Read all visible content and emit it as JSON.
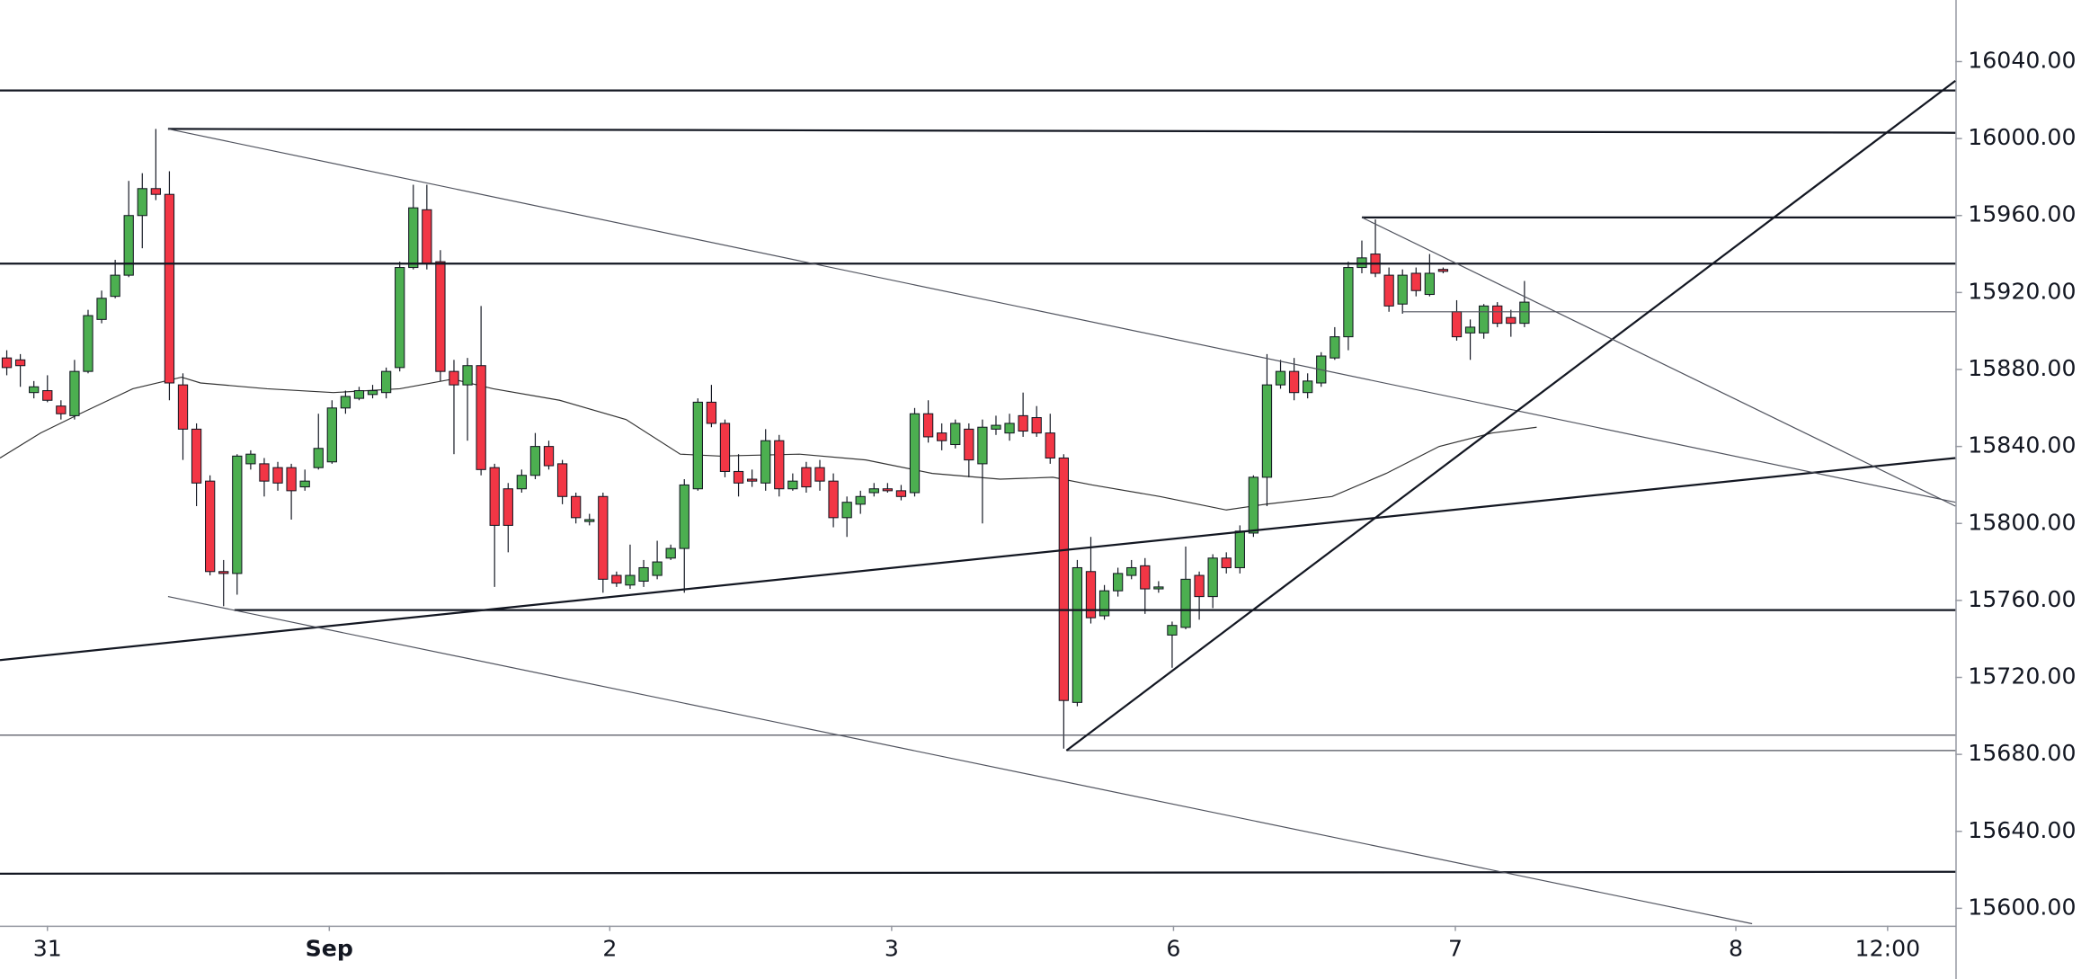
{
  "chart_data": {
    "type": "candlestick",
    "xlim": [
      -0.5,
      143.8
    ],
    "ylim": [
      15591,
      16072
    ],
    "xticks": [
      {
        "value": 3,
        "label": "31"
      },
      {
        "value": 23.8,
        "label": "Sep"
      },
      {
        "value": 44.5,
        "label": "2"
      },
      {
        "value": 65.3,
        "label": "3"
      },
      {
        "value": 86.1,
        "label": "6"
      },
      {
        "value": 106.9,
        "label": "7"
      },
      {
        "value": 127.6,
        "label": "8"
      },
      {
        "value": 138.8,
        "label": "12:00"
      }
    ],
    "yticks": [
      {
        "value": 15600,
        "label": "15600.00"
      },
      {
        "value": 15640,
        "label": "15640.00"
      },
      {
        "value": 15680,
        "label": "15680.00"
      },
      {
        "value": 15720,
        "label": "15720.00"
      },
      {
        "value": 15760,
        "label": "15760.00"
      },
      {
        "value": 15800,
        "label": "15800.00"
      },
      {
        "value": 15840,
        "label": "15840.00"
      },
      {
        "value": 15880,
        "label": "15880.00"
      },
      {
        "value": 15920,
        "label": "15920.00"
      },
      {
        "value": 15960,
        "label": "15960.00"
      },
      {
        "value": 16000,
        "label": "16000.00"
      },
      {
        "value": 16040,
        "label": "16040.00"
      }
    ],
    "up_color": "#4caf50",
    "down_color": "#f23645",
    "open": [
      15886,
      15885,
      15868,
      15869,
      15861,
      15856,
      15879,
      15906,
      15918,
      15929,
      15960,
      15974,
      15971,
      15872,
      15849,
      15822,
      15775,
      15774,
      15831,
      15831,
      15829,
      15829,
      15819,
      15829,
      15832,
      15860,
      15865,
      15867,
      15868,
      15881,
      15933,
      15963,
      15936,
      15879,
      15872,
      15882,
      15829,
      15818,
      15818,
      15825,
      15840,
      15831,
      15814,
      15801,
      15814,
      15773,
      15768,
      15770,
      15773,
      15782,
      15787,
      15818,
      15863,
      15852,
      15827,
      15823,
      15821,
      15843,
      15818,
      15829,
      15829,
      15822,
      15803,
      15810,
      15816,
      15818,
      15817,
      15816,
      15857,
      15847,
      15841,
      15849,
      15831,
      15849,
      15847,
      15856,
      15855,
      15847,
      15834,
      15707,
      15775,
      15752,
      15765,
      15773,
      15778,
      15766,
      15742,
      15746,
      15773,
      15762,
      15782,
      15777,
      15795,
      15824,
      15872,
      15879,
      15868,
      15873,
      15886,
      15897,
      15933,
      15940,
      15929,
      15914,
      15930,
      15919,
      15932,
      15910,
      15899,
      15899,
      15913,
      15907,
      15904
    ],
    "high": [
      15890,
      15888,
      15874,
      15877,
      15864,
      15885,
      15911,
      15921,
      15937,
      15978,
      15982,
      16005,
      15983,
      15878,
      15852,
      15825,
      15781,
      15836,
      15838,
      15834,
      15832,
      15831,
      15828,
      15857,
      15864,
      15869,
      15871,
      15872,
      15881,
      15936,
      15976,
      15976,
      15942,
      15885,
      15886,
      15913,
      15831,
      15821,
      15828,
      15847,
      15843,
      15833,
      15816,
      15805,
      15816,
      15775,
      15789,
      15781,
      15791,
      15789,
      15823,
      15865,
      15872,
      15854,
      15836,
      15828,
      15849,
      15846,
      15826,
      15832,
      15833,
      15826,
      15814,
      15817,
      15821,
      15821,
      15820,
      15860,
      15864,
      15852,
      15854,
      15852,
      15854,
      15856,
      15857,
      15868,
      15861,
      15857,
      15836,
      15781,
      15793,
      15768,
      15777,
      15781,
      15782,
      15770,
      15749,
      15788,
      15775,
      15784,
      15785,
      15799,
      15825,
      15888,
      15885,
      15886,
      15878,
      15889,
      15902,
      15936,
      15947,
      15958,
      15933,
      15932,
      15933,
      15940,
      15933,
      15916,
      15906,
      15914,
      15915,
      15911,
      15926
    ],
    "low": [
      15877,
      15871,
      15865,
      15863,
      15854,
      15854,
      15878,
      15904,
      15917,
      15928,
      15943,
      15968,
      15864,
      15833,
      15809,
      15773,
      15757,
      15763,
      15828,
      15814,
      15817,
      15802,
      15817,
      15828,
      15831,
      15857,
      15864,
      15865,
      15865,
      15879,
      15932,
      15932,
      15874,
      15836,
      15843,
      15825,
      15767,
      15785,
      15816,
      15823,
      15828,
      15810,
      15800,
      15799,
      15764,
      15767,
      15766,
      15767,
      15771,
      15781,
      15764,
      15817,
      15850,
      15824,
      15814,
      15819,
      15817,
      15814,
      15817,
      15816,
      15817,
      15798,
      15793,
      15805,
      15814,
      15816,
      15812,
      15814,
      15842,
      15838,
      15839,
      15824,
      15800,
      15846,
      15843,
      15845,
      15845,
      15831,
      15683,
      15705,
      15748,
      15750,
      15762,
      15771,
      15753,
      15764,
      15725,
      15745,
      15750,
      15756,
      15774,
      15774,
      15793,
      15809,
      15870,
      15864,
      15865,
      15871,
      15885,
      15890,
      15930,
      15928,
      15910,
      15909,
      15918,
      15918,
      15930,
      15895,
      15885,
      15896,
      15902,
      15897,
      15902
    ],
    "close": [
      15881,
      15882,
      15871,
      15864,
      15857,
      15879,
      15908,
      15917,
      15929,
      15960,
      15974,
      15971,
      15873,
      15849,
      15821,
      15775,
      15774,
      15835,
      15836,
      15822,
      15821,
      15817,
      15822,
      15839,
      15860,
      15866,
      15869,
      15869,
      15879,
      15933,
      15964,
      15935,
      15879,
      15872,
      15882,
      15828,
      15799,
      15799,
      15825,
      15840,
      15830,
      15814,
      15803,
      15802,
      15771,
      15769,
      15773,
      15777,
      15780,
      15787,
      15820,
      15863,
      15852,
      15827,
      15821,
      15822,
      15843,
      15818,
      15822,
      15819,
      15822,
      15803,
      15811,
      15814,
      15818,
      15817,
      15814,
      15857,
      15845,
      15843,
      15852,
      15833,
      15850,
      15851,
      15852,
      15848,
      15847,
      15834,
      15708,
      15777,
      15751,
      15765,
      15774,
      15777,
      15766,
      15767,
      15747,
      15771,
      15762,
      15782,
      15777,
      15796,
      15824,
      15872,
      15879,
      15868,
      15874,
      15887,
      15897,
      15933,
      15938,
      15930,
      15913,
      15929,
      15921,
      15930,
      15931,
      15897,
      15902,
      15913,
      15904,
      15904,
      15915
    ],
    "moving_average": {
      "color": "#333333",
      "x": [
        -0.5,
        2.5,
        5.4,
        9.3,
        12.9,
        14.3,
        19.2,
        24.1,
        29,
        32.9,
        35.9,
        40.8,
        45.7,
        49.7,
        52.6,
        58.5,
        63.4,
        68.3,
        73.3,
        77.2,
        80.1,
        85.1,
        90,
        92.9,
        97.8,
        101.8,
        105.7,
        109.6,
        112.9
      ],
      "values": [
        15834,
        15847,
        15857,
        15870,
        15876,
        15873,
        15870,
        15868,
        15870,
        15875,
        15870,
        15864,
        15854,
        15836,
        15835,
        15836,
        15833,
        15826,
        15823,
        15824,
        15820,
        15814,
        15807,
        15810,
        15814,
        15826,
        15840,
        15847,
        15850
      ]
    },
    "drawings": [
      {
        "weight": "thick",
        "x": [
          -0.5,
          143.8
        ],
        "y": [
          16025,
          16025
        ]
      },
      {
        "weight": "thick",
        "x": [
          11.9,
          143.8
        ],
        "y": [
          16005,
          16003
        ]
      },
      {
        "weight": "thick",
        "x": [
          -0.5,
          143.8
        ],
        "y": [
          15935,
          15935
        ]
      },
      {
        "weight": "thick",
        "x": [
          100,
          143.8
        ],
        "y": [
          15959,
          15959
        ]
      },
      {
        "weight": "thin",
        "x": [
          103,
          143.8
        ],
        "y": [
          15910,
          15910
        ]
      },
      {
        "weight": "thick",
        "x": [
          16.8,
          143.8
        ],
        "y": [
          15755,
          15755
        ]
      },
      {
        "weight": "thin",
        "x": [
          -0.5,
          143.8
        ],
        "y": [
          15690,
          15690
        ]
      },
      {
        "weight": "thin",
        "x": [
          78.2,
          143.8
        ],
        "y": [
          15682,
          15682
        ]
      },
      {
        "weight": "thick",
        "x": [
          -0.5,
          143.8
        ],
        "y": [
          15618,
          15619
        ]
      },
      {
        "weight": "thick",
        "x": [
          -0.5,
          143.8
        ],
        "y": [
          15729,
          15834
        ]
      },
      {
        "weight": "thin",
        "x": [
          11.9,
          143.8
        ],
        "y": [
          16005,
          15811
        ]
      },
      {
        "weight": "thin",
        "x": [
          11.9,
          128.8
        ],
        "y": [
          15762,
          15592
        ]
      },
      {
        "weight": "thick",
        "x": [
          78.2,
          143.8
        ],
        "y": [
          15682,
          16030
        ]
      },
      {
        "weight": "thin",
        "x": [
          100,
          143.8
        ],
        "y": [
          15959,
          15809
        ]
      }
    ]
  }
}
